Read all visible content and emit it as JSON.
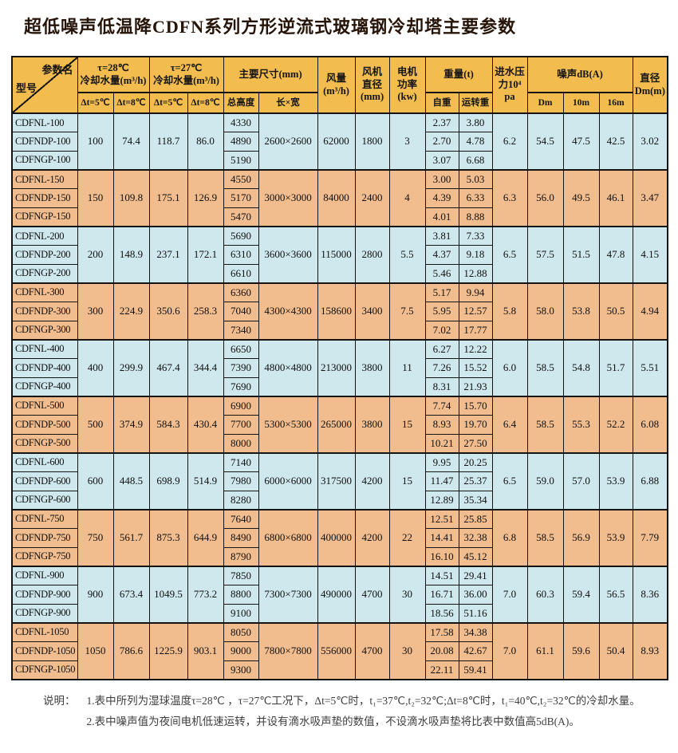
{
  "title": "超低噪声低温降CDFN系列方形逆流式玻璃钢冷却塔主要参数",
  "header": {
    "corner_top": "参数名",
    "corner_bottom": "型号",
    "tau28": "τ=28℃\n冷却水量(m³/h)",
    "tau27": "τ=27℃\n冷却水量(m³/h)",
    "dims": "主要尺寸(mm)",
    "airflow": "风量\n(m³/h)",
    "fan_dia": "风机\n直径\n(mm)",
    "motor": "电机\n功率\n(kw)",
    "weight": "重量(t)",
    "pressure": "进水压\n力10⁴\npa",
    "noise": "噪声dB(A)",
    "dia": "直径\nDm(m)",
    "dt5": "Δt=5℃",
    "dt8": "Δt=8℃",
    "total_height": "总高度",
    "lxw": "长×宽",
    "self_weight": "自重",
    "run_weight": "运转重",
    "noise_dm": "Dm",
    "noise_10m": "10m",
    "noise_16m": "16m"
  },
  "groups": [
    {
      "models": [
        "CDFNL-100",
        "CDFNDP-100",
        "CDFNGP-100"
      ],
      "t28_dt5": "100",
      "t28_dt8": "74.4",
      "t27_dt5": "118.7",
      "t27_dt8": "86.0",
      "heights": [
        "4330",
        "4890",
        "5190"
      ],
      "lxw": "2600×2600",
      "airflow": "62000",
      "fan_dia": "1800",
      "motor_kw": "3",
      "self_weight": [
        "2.37",
        "2.70",
        "3.07"
      ],
      "run_weight": [
        "3.80",
        "4.78",
        "6.68"
      ],
      "pressure": "6.2",
      "noise_dm": "54.5",
      "noise_10m": "47.5",
      "noise_16m": "42.5",
      "dia": "3.02"
    },
    {
      "models": [
        "CDFNL-150",
        "CDFNDP-150",
        "CDFNGP-150"
      ],
      "t28_dt5": "150",
      "t28_dt8": "109.8",
      "t27_dt5": "175.1",
      "t27_dt8": "126.9",
      "heights": [
        "4550",
        "5170",
        "5470"
      ],
      "lxw": "3000×3000",
      "airflow": "84000",
      "fan_dia": "2400",
      "motor_kw": "4",
      "self_weight": [
        "3.00",
        "4.39",
        "4.01"
      ],
      "run_weight": [
        "5.03",
        "6.33",
        "8.88"
      ],
      "pressure": "6.3",
      "noise_dm": "56.0",
      "noise_10m": "49.5",
      "noise_16m": "46.1",
      "dia": "3.47"
    },
    {
      "models": [
        "CDFNL-200",
        "CDFNDP-200",
        "CDFNGP-200"
      ],
      "t28_dt5": "200",
      "t28_dt8": "148.9",
      "t27_dt5": "237.1",
      "t27_dt8": "172.1",
      "heights": [
        "5690",
        "6310",
        "6610"
      ],
      "lxw": "3600×3600",
      "airflow": "115000",
      "fan_dia": "2800",
      "motor_kw": "5.5",
      "self_weight": [
        "3.81",
        "4.37",
        "5.46"
      ],
      "run_weight": [
        "7.33",
        "9.18",
        "12.88"
      ],
      "pressure": "6.5",
      "noise_dm": "57.5",
      "noise_10m": "51.5",
      "noise_16m": "47.8",
      "dia": "4.15"
    },
    {
      "models": [
        "CDFNL-300",
        "CDFNDP-300",
        "CDFNGP-300"
      ],
      "t28_dt5": "300",
      "t28_dt8": "224.9",
      "t27_dt5": "350.6",
      "t27_dt8": "258.3",
      "heights": [
        "6360",
        "7040",
        "7340"
      ],
      "lxw": "4300×4300",
      "airflow": "158600",
      "fan_dia": "3400",
      "motor_kw": "7.5",
      "self_weight": [
        "5.17",
        "5.95",
        "7.02"
      ],
      "run_weight": [
        "9.94",
        "12.57",
        "17.77"
      ],
      "pressure": "5.8",
      "noise_dm": "58.0",
      "noise_10m": "53.8",
      "noise_16m": "50.5",
      "dia": "4.94"
    },
    {
      "models": [
        "CDFNL-400",
        "CDFNDP-400",
        "CDFNGP-400"
      ],
      "t28_dt5": "400",
      "t28_dt8": "299.9",
      "t27_dt5": "467.4",
      "t27_dt8": "344.4",
      "heights": [
        "6650",
        "7390",
        "7690"
      ],
      "lxw": "4800×4800",
      "airflow": "213000",
      "fan_dia": "3800",
      "motor_kw": "11",
      "self_weight": [
        "6.27",
        "7.26",
        "8.31"
      ],
      "run_weight": [
        "12.22",
        "15.52",
        "21.93"
      ],
      "pressure": "6.0",
      "noise_dm": "58.5",
      "noise_10m": "54.8",
      "noise_16m": "51.7",
      "dia": "5.51"
    },
    {
      "models": [
        "CDFNL-500",
        "CDFNDP-500",
        "CDFNGP-500"
      ],
      "t28_dt5": "500",
      "t28_dt8": "374.9",
      "t27_dt5": "584.3",
      "t27_dt8": "430.4",
      "heights": [
        "6900",
        "7700",
        "8000"
      ],
      "lxw": "5300×5300",
      "airflow": "265000",
      "fan_dia": "3800",
      "motor_kw": "15",
      "self_weight": [
        "7.74",
        "8.93",
        "10.21"
      ],
      "run_weight": [
        "15.70",
        "19.70",
        "27.50"
      ],
      "pressure": "6.4",
      "noise_dm": "58.5",
      "noise_10m": "55.3",
      "noise_16m": "52.2",
      "dia": "6.08"
    },
    {
      "models": [
        "CDFNL-600",
        "CDFNDP-600",
        "CDFNGP-600"
      ],
      "t28_dt5": "600",
      "t28_dt8": "448.5",
      "t27_dt5": "698.9",
      "t27_dt8": "514.9",
      "heights": [
        "7140",
        "7980",
        "8280"
      ],
      "lxw": "6000×6000",
      "airflow": "317500",
      "fan_dia": "4200",
      "motor_kw": "15",
      "self_weight": [
        "9.95",
        "11.47",
        "12.89"
      ],
      "run_weight": [
        "20.25",
        "25.37",
        "35.34"
      ],
      "pressure": "6.5",
      "noise_dm": "59.0",
      "noise_10m": "57.0",
      "noise_16m": "53.9",
      "dia": "6.88"
    },
    {
      "models": [
        "CDFNL-750",
        "CDFNDP-750",
        "CDFNGP-750"
      ],
      "t28_dt5": "750",
      "t28_dt8": "561.7",
      "t27_dt5": "875.3",
      "t27_dt8": "644.9",
      "heights": [
        "7640",
        "8490",
        "8790"
      ],
      "lxw": "6800×6800",
      "airflow": "400000",
      "fan_dia": "4200",
      "motor_kw": "22",
      "self_weight": [
        "12.51",
        "14.41",
        "16.10"
      ],
      "run_weight": [
        "25.85",
        "32.38",
        "45.12"
      ],
      "pressure": "6.8",
      "noise_dm": "58.5",
      "noise_10m": "56.9",
      "noise_16m": "53.9",
      "dia": "7.79"
    },
    {
      "models": [
        "CDFNL-900",
        "CDFNDP-900",
        "CDFNGP-900"
      ],
      "t28_dt5": "900",
      "t28_dt8": "673.4",
      "t27_dt5": "1049.5",
      "t27_dt8": "773.2",
      "heights": [
        "7850",
        "8800",
        "9100"
      ],
      "lxw": "7300×7300",
      "airflow": "490000",
      "fan_dia": "4700",
      "motor_kw": "30",
      "self_weight": [
        "14.51",
        "16.71",
        "18.56"
      ],
      "run_weight": [
        "29.41",
        "36.00",
        "51.16"
      ],
      "pressure": "7.0",
      "noise_dm": "60.3",
      "noise_10m": "59.4",
      "noise_16m": "56.5",
      "dia": "8.36"
    },
    {
      "models": [
        "CDFNL-1050",
        "CDFNDP-1050",
        "CDFNGP-1050"
      ],
      "t28_dt5": "1050",
      "t28_dt8": "786.6",
      "t27_dt5": "1225.9",
      "t27_dt8": "903.1",
      "heights": [
        "8050",
        "9000",
        "9300"
      ],
      "lxw": "7800×7800",
      "airflow": "556000",
      "fan_dia": "4700",
      "motor_kw": "30",
      "self_weight": [
        "17.58",
        "20.08",
        "22.11"
      ],
      "run_weight": [
        "34.38",
        "42.67",
        "59.41"
      ],
      "pressure": "7.0",
      "noise_dm": "61.1",
      "noise_10m": "59.6",
      "noise_16m": "50.4",
      "dia": "8.93"
    }
  ],
  "notes": {
    "label": "说明：",
    "items": [
      "1.表中所列为湿球温度τ=28℃ ，τ=27℃工况下，Δt=5℃时，t₁=37℃,t₂=32℃;Δt=8℃时，t₁=40℃,t₂=32℃的冷却水量。",
      "2.表中噪声值为夜间电机低速运转，并设有滴水吸声垫的数值，不设滴水吸声垫将比表中数值高5dB(A)。"
    ]
  },
  "colors": {
    "header_bg": "#f2bc4f",
    "row_blue": "#cee8ee",
    "row_orange": "#f1bd8e",
    "border": "#141414"
  }
}
